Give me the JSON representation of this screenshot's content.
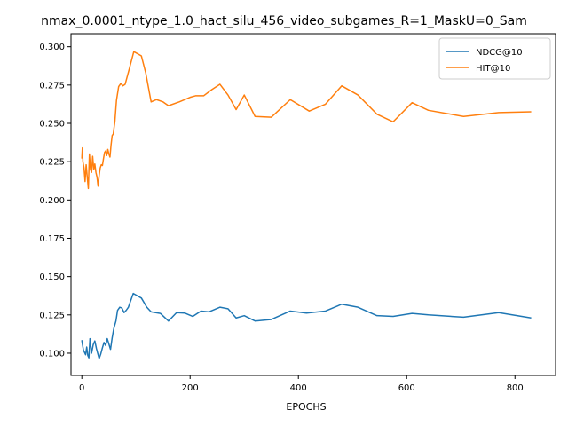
{
  "chart_data": {
    "type": "line",
    "title": "nmax_0.0001_ntype_1.0_hact_silu_456_video_subgames_R=1_MaskU=0_Sam",
    "xlabel": "EPOCHS",
    "ylabel": "",
    "xlim": [
      -20,
      875
    ],
    "ylim": [
      0.0855,
      0.3085
    ],
    "xticks": [
      0,
      200,
      400,
      600,
      800
    ],
    "yticks": [
      0.1,
      0.125,
      0.15,
      0.175,
      0.2,
      0.225,
      0.25,
      0.275,
      0.3
    ],
    "legend_position": "upper right",
    "grid": false,
    "series": [
      {
        "name": "NDCG@10",
        "color": "#1f77b4",
        "points": [
          [
            0,
            0.1085
          ],
          [
            1,
            0.106
          ],
          [
            3,
            0.102
          ],
          [
            5,
            0.1005
          ],
          [
            7,
            0.099
          ],
          [
            9,
            0.104
          ],
          [
            11,
            0.0985
          ],
          [
            13,
            0.097
          ],
          [
            15,
            0.1095
          ],
          [
            18,
            0.1
          ],
          [
            21,
            0.1055
          ],
          [
            24,
            0.108
          ],
          [
            27,
            0.103
          ],
          [
            30,
            0.099
          ],
          [
            32,
            0.0965
          ],
          [
            35,
            0.0995
          ],
          [
            38,
            0.1035
          ],
          [
            41,
            0.107
          ],
          [
            44,
            0.105
          ],
          [
            47,
            0.1095
          ],
          [
            50,
            0.106
          ],
          [
            53,
            0.1025
          ],
          [
            56,
            0.11
          ],
          [
            59,
            0.116
          ],
          [
            63,
            0.121
          ],
          [
            66,
            0.128
          ],
          [
            70,
            0.13
          ],
          [
            74,
            0.1295
          ],
          [
            78,
            0.1265
          ],
          [
            82,
            0.128
          ],
          [
            86,
            0.13
          ],
          [
            90,
            0.134
          ],
          [
            95,
            0.139
          ],
          [
            110,
            0.136
          ],
          [
            120,
            0.13
          ],
          [
            128,
            0.127
          ],
          [
            145,
            0.126
          ],
          [
            160,
            0.121
          ],
          [
            175,
            0.1265
          ],
          [
            190,
            0.1262
          ],
          [
            205,
            0.124
          ],
          [
            220,
            0.1275
          ],
          [
            235,
            0.127
          ],
          [
            255,
            0.13
          ],
          [
            270,
            0.129
          ],
          [
            285,
            0.123
          ],
          [
            300,
            0.1245
          ],
          [
            320,
            0.121
          ],
          [
            350,
            0.122
          ],
          [
            385,
            0.1275
          ],
          [
            415,
            0.1262
          ],
          [
            450,
            0.1275
          ],
          [
            480,
            0.132
          ],
          [
            510,
            0.13
          ],
          [
            545,
            0.1245
          ],
          [
            575,
            0.124
          ],
          [
            610,
            0.126
          ],
          [
            640,
            0.125
          ],
          [
            705,
            0.1235
          ],
          [
            770,
            0.1265
          ],
          [
            830,
            0.123
          ]
        ]
      },
      {
        "name": "HIT@10",
        "color": "#ff7f0e",
        "points": [
          [
            0,
            0.227
          ],
          [
            1,
            0.234
          ],
          [
            2,
            0.225
          ],
          [
            4,
            0.221
          ],
          [
            6,
            0.212
          ],
          [
            8,
            0.223
          ],
          [
            10,
            0.215
          ],
          [
            12,
            0.2075
          ],
          [
            14,
            0.23
          ],
          [
            16,
            0.22
          ],
          [
            18,
            0.218
          ],
          [
            20,
            0.2285
          ],
          [
            22,
            0.22
          ],
          [
            24,
            0.2235
          ],
          [
            26,
            0.218
          ],
          [
            28,
            0.215
          ],
          [
            30,
            0.209
          ],
          [
            32,
            0.216
          ],
          [
            34,
            0.221
          ],
          [
            36,
            0.223
          ],
          [
            38,
            0.2225
          ],
          [
            40,
            0.227
          ],
          [
            42,
            0.231
          ],
          [
            44,
            0.232
          ],
          [
            46,
            0.229
          ],
          [
            48,
            0.233
          ],
          [
            50,
            0.23
          ],
          [
            52,
            0.228
          ],
          [
            54,
            0.236
          ],
          [
            56,
            0.242
          ],
          [
            58,
            0.243
          ],
          [
            61,
            0.251
          ],
          [
            64,
            0.265
          ],
          [
            68,
            0.274
          ],
          [
            72,
            0.276
          ],
          [
            76,
            0.2745
          ],
          [
            80,
            0.2755
          ],
          [
            88,
            0.286
          ],
          [
            96,
            0.2968
          ],
          [
            110,
            0.294
          ],
          [
            118,
            0.283
          ],
          [
            128,
            0.264
          ],
          [
            138,
            0.2655
          ],
          [
            150,
            0.264
          ],
          [
            160,
            0.2615
          ],
          [
            180,
            0.264
          ],
          [
            200,
            0.267
          ],
          [
            210,
            0.268
          ],
          [
            225,
            0.268
          ],
          [
            240,
            0.272
          ],
          [
            255,
            0.2755
          ],
          [
            270,
            0.2685
          ],
          [
            285,
            0.259
          ],
          [
            300,
            0.2685
          ],
          [
            320,
            0.2545
          ],
          [
            350,
            0.254
          ],
          [
            385,
            0.2655
          ],
          [
            420,
            0.258
          ],
          [
            450,
            0.2625
          ],
          [
            480,
            0.2745
          ],
          [
            510,
            0.2685
          ],
          [
            545,
            0.256
          ],
          [
            575,
            0.251
          ],
          [
            610,
            0.2635
          ],
          [
            640,
            0.2585
          ],
          [
            705,
            0.2545
          ],
          [
            770,
            0.257
          ],
          [
            830,
            0.2575
          ]
        ]
      }
    ]
  }
}
